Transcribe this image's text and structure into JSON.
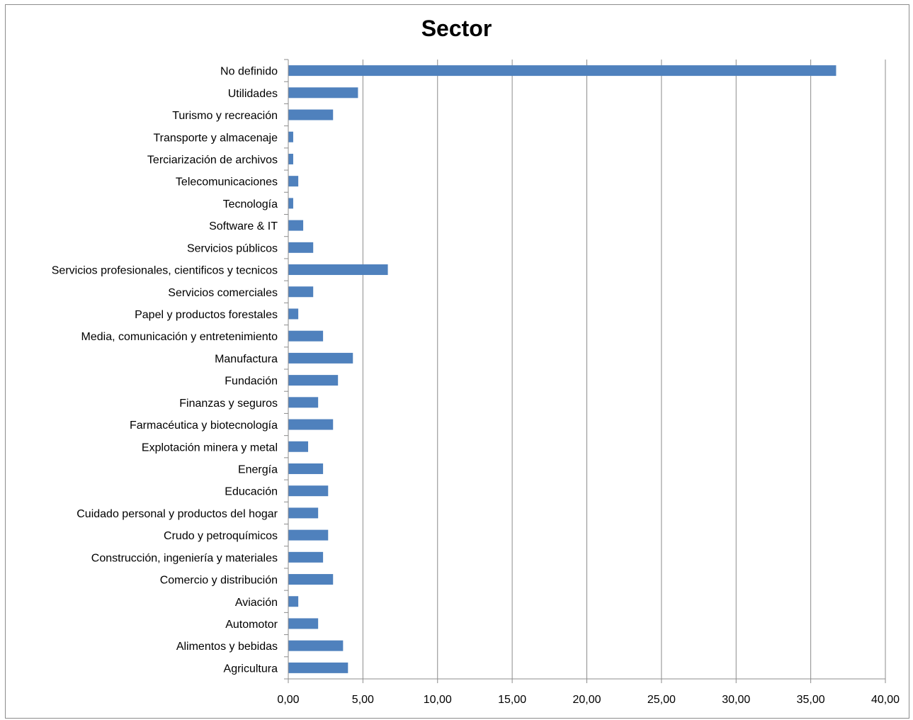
{
  "chart_data": {
    "type": "bar",
    "orientation": "horizontal",
    "title": "Sector",
    "xlabel": "",
    "ylabel": "",
    "xlim": [
      0,
      40
    ],
    "x_ticks": [
      "0,00",
      "5,00",
      "10,00",
      "15,00",
      "20,00",
      "25,00",
      "30,00",
      "35,00",
      "40,00"
    ],
    "grid": "vertical major gridlines",
    "legend": "none",
    "bar_color": "#4f81bd",
    "categories": [
      "No definido",
      "Utilidades",
      "Turismo y recreación",
      "Transporte y almacenaje",
      "Terciarización de archivos",
      "Telecomunicaciones",
      "Tecnología",
      "Software & IT",
      "Servicios públicos",
      "Servicios profesionales, cientificos y tecnicos",
      "Servicios comerciales",
      "Papel y productos forestales",
      "Media, comunicación y entretenimiento",
      "Manufactura",
      "Fundación",
      "Finanzas y seguros",
      "Farmacéutica y biotecnología",
      "Explotación minera y metal",
      "Energía",
      "Educación",
      "Cuidado personal y productos del hogar",
      "Crudo y petroquímicos",
      "Construcción, ingeniería y materiales",
      "Comercio y distribución",
      "Aviación",
      "Automotor",
      "Alimentos y bebidas",
      "Agricultura"
    ],
    "values": [
      36.7,
      4.67,
      3.0,
      0.33,
      0.33,
      0.67,
      0.33,
      1.0,
      1.67,
      6.67,
      1.67,
      0.67,
      2.33,
      4.33,
      3.33,
      2.0,
      3.0,
      1.33,
      2.33,
      2.67,
      2.0,
      2.67,
      2.33,
      3.0,
      0.67,
      2.0,
      3.67,
      4.0
    ]
  }
}
